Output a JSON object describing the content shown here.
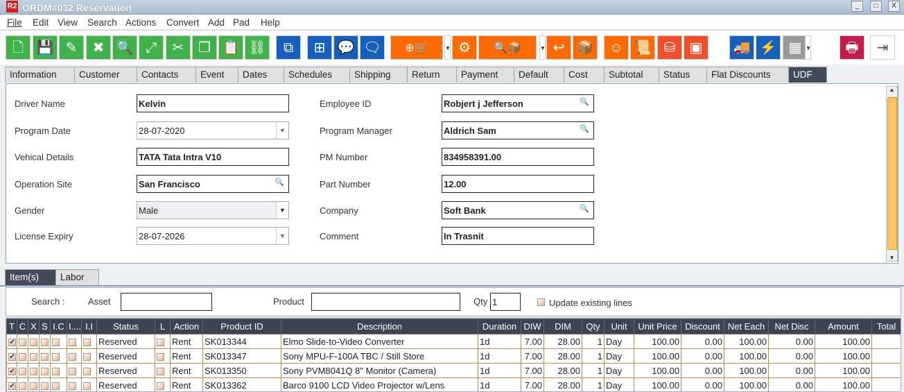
{
  "window": {
    "logo": "R2",
    "title": "ORDM#032 Reservation",
    "min": "_",
    "max": "□",
    "close": "X"
  },
  "menu": [
    "File",
    "Edit",
    "View",
    "Search",
    "Actions",
    "Convert",
    "Add",
    "Pad",
    "Help"
  ],
  "toolbar": [
    {
      "icon": "new-document-icon",
      "glyph": "🗋",
      "color": "g"
    },
    {
      "icon": "save-icon",
      "glyph": "💾",
      "color": "g"
    },
    {
      "icon": "edit-pencil-icon",
      "glyph": "✎",
      "color": "g"
    },
    {
      "icon": "delete-x-icon",
      "glyph": "✖",
      "color": "g"
    },
    {
      "icon": "search-icon",
      "glyph": "🔍",
      "color": "g"
    },
    {
      "icon": "expand-icon",
      "glyph": "⤢",
      "color": "g"
    },
    {
      "icon": "cut-scissors-icon",
      "glyph": "✂",
      "color": "g"
    },
    {
      "icon": "copy-icon",
      "glyph": "❐",
      "color": "g"
    },
    {
      "icon": "paste-icon",
      "glyph": "📋",
      "color": "g"
    },
    {
      "icon": "hierarchy-icon",
      "glyph": "⛓",
      "color": "g"
    },
    {
      "icon": "copy-zero-icon",
      "glyph": "⧉",
      "color": "b"
    },
    {
      "icon": "flowchart-icon",
      "glyph": "⊞",
      "color": "b"
    },
    {
      "icon": "message-icon",
      "glyph": "💬",
      "color": "b"
    },
    {
      "icon": "comment-zero-icon",
      "glyph": "🗨",
      "color": "b"
    },
    {
      "icon": "add-po-cart-icon",
      "glyph": "⊕🛒",
      "color": "o"
    },
    {
      "icon": "gears-icon",
      "glyph": "⚙",
      "color": "o"
    },
    {
      "icon": "search-box-icon",
      "glyph": "🔍📦",
      "color": "o"
    },
    {
      "icon": "return-icon",
      "glyph": "↩",
      "color": "o"
    },
    {
      "icon": "box-return-icon",
      "glyph": "📦",
      "color": "o"
    },
    {
      "icon": "smiley-icon",
      "glyph": "☺",
      "color": "o"
    },
    {
      "icon": "scroll-icon",
      "glyph": "📜",
      "color": "o"
    },
    {
      "icon": "coins-add-icon",
      "glyph": "⛁",
      "color": "r"
    },
    {
      "icon": "safe-icon",
      "glyph": "▣",
      "color": "r"
    },
    {
      "icon": "delivery-truck-icon",
      "glyph": "🚚",
      "color": "b"
    },
    {
      "icon": "lightning-icon",
      "glyph": "⚡",
      "color": "b"
    },
    {
      "icon": "calendar-icon",
      "glyph": "▦",
      "color": "gr"
    },
    {
      "icon": "print-icon",
      "glyph": "🖶",
      "color": "pk"
    },
    {
      "icon": "exit-icon",
      "glyph": "⇥",
      "color": "w"
    }
  ],
  "tabs": [
    "Information",
    "Customer",
    "Contacts",
    "Event",
    "Dates",
    "Schedules",
    "Shipping",
    "Return",
    "Payment",
    "Default",
    "Cost",
    "Subtotal",
    "Status",
    "Flat Discounts",
    "UDF"
  ],
  "active_tab": "UDF",
  "form": {
    "driver_name": {
      "label": "Driver Name",
      "value": "Kelvin"
    },
    "program_date": {
      "label": "Program Date",
      "value": "28-07-2020"
    },
    "vehical_details": {
      "label": "Vehical Details",
      "value": "TATA Tata Intra V10"
    },
    "operation_site": {
      "label": "Operation Site",
      "value": "San Francisco"
    },
    "gender": {
      "label": "Gender",
      "value": "Male"
    },
    "license_expiry": {
      "label": "License Expiry",
      "value": "28-07-2026"
    },
    "employee_id": {
      "label": "Employee ID",
      "value": "Robjert j Jefferson"
    },
    "program_manager": {
      "label": "Program Manager",
      "value": "Aldrich  Sam"
    },
    "pm_number": {
      "label": "PM Number",
      "value": "834958391.00"
    },
    "part_number": {
      "label": "Part Number",
      "value": "12.00"
    },
    "company": {
      "label": "Company",
      "value": "Soft Bank"
    },
    "comment": {
      "label": "Comment",
      "value": "In Trasnit"
    }
  },
  "subtabs": [
    "Item(s)",
    "Labor"
  ],
  "search": {
    "label": "Search :",
    "asset_label": "Asset",
    "asset_value": "",
    "product_label": "Product",
    "product_value": "",
    "qty_label": "Qty",
    "qty_value": "1",
    "update_label": "Update existing lines"
  },
  "table": {
    "columns": [
      "T",
      "C",
      "X",
      "S",
      "I.C",
      "I....",
      "I.I",
      "Status",
      "L",
      "Action",
      "Product ID",
      "Description",
      "Duration",
      "DIW",
      "DIM",
      "Qty",
      "Unit",
      "Unit Price",
      "Discount",
      "Net Each",
      "Net Disc",
      "Amount",
      "Total"
    ],
    "rows": [
      [
        "Reserved",
        "Rent",
        "SK013344",
        "Elmo Slide-to-Video Converter",
        "1d",
        "7.00",
        "28.00",
        "1",
        "Day",
        "100.00",
        "0.00",
        "100.00",
        "0.00",
        "100.00"
      ],
      [
        "Reserved",
        "Rent",
        "SK013347",
        "Sony MPU-F-100A TBC / Still Store",
        "1d",
        "7.00",
        "28.00",
        "1",
        "Day",
        "100.00",
        "0.00",
        "100.00",
        "0.00",
        "100.00"
      ],
      [
        "Reserved",
        "Rent",
        "SK013350",
        "Sony PVM8041Q 8\" Monitor (Camera)",
        "1d",
        "7.00",
        "28.00",
        "1",
        "Day",
        "100.00",
        "0.00",
        "100.00",
        "0.00",
        "100.00"
      ],
      [
        "Reserved",
        "Rent",
        "SK013362",
        "Barco 9100 LCD Video Projector w/Lens",
        "1d",
        "7.00",
        "28.00",
        "1",
        "Day",
        "100.00",
        "0.00",
        "100.00",
        "0.00",
        "100.00"
      ]
    ]
  }
}
